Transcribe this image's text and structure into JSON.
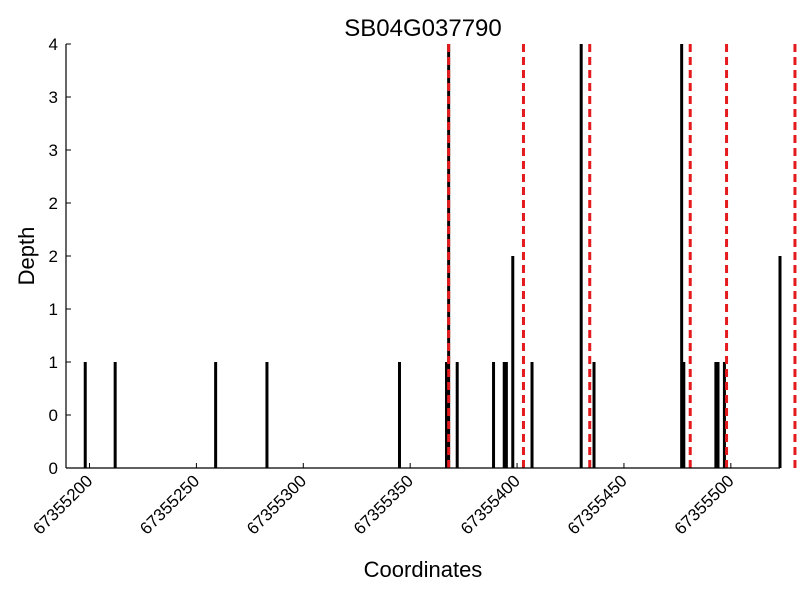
{
  "chart_data": {
    "type": "bar",
    "title": "SB04G037790",
    "xlabel": "Coordinates",
    "ylabel": "Depth",
    "xlim": [
      67355189,
      67355523
    ],
    "ylim": [
      0,
      4
    ],
    "y_tick_values": [
      0,
      0.5,
      1,
      1.5,
      2,
      2.5,
      3,
      3.5,
      4
    ],
    "y_tick_labels": [
      "0",
      "0",
      "1",
      "1",
      "2",
      "2",
      "3",
      "3",
      "4"
    ],
    "x_tick_values": [
      67355200,
      67355250,
      67355300,
      67355350,
      67355400,
      67355450,
      67355500
    ],
    "x_tick_labels": [
      "67355200",
      "67355250",
      "67355300",
      "67355350",
      "67355400",
      "67355450",
      "67355500"
    ],
    "bar_color": "#000000",
    "marker_color": "#e41a1c",
    "bars": [
      {
        "x": 67355198,
        "y": 1
      },
      {
        "x": 67355212,
        "y": 1
      },
      {
        "x": 67355259,
        "y": 1
      },
      {
        "x": 67355283,
        "y": 1
      },
      {
        "x": 67355345,
        "y": 1
      },
      {
        "x": 67355367,
        "y": 1
      },
      {
        "x": 67355368,
        "y": 4
      },
      {
        "x": 67355372,
        "y": 1
      },
      {
        "x": 67355389,
        "y": 1
      },
      {
        "x": 67355394,
        "y": 1
      },
      {
        "x": 67355395,
        "y": 1
      },
      {
        "x": 67355398,
        "y": 2
      },
      {
        "x": 67355407,
        "y": 1
      },
      {
        "x": 67355430,
        "y": 4
      },
      {
        "x": 67355436,
        "y": 1
      },
      {
        "x": 67355477,
        "y": 4
      },
      {
        "x": 67355478,
        "y": 1
      },
      {
        "x": 67355493,
        "y": 1
      },
      {
        "x": 67355494,
        "y": 1
      },
      {
        "x": 67355497,
        "y": 1
      },
      {
        "x": 67355523,
        "y": 2
      }
    ],
    "markers_x": [
      67355368,
      67355403,
      67355434,
      67355481,
      67355498,
      67355530
    ]
  }
}
